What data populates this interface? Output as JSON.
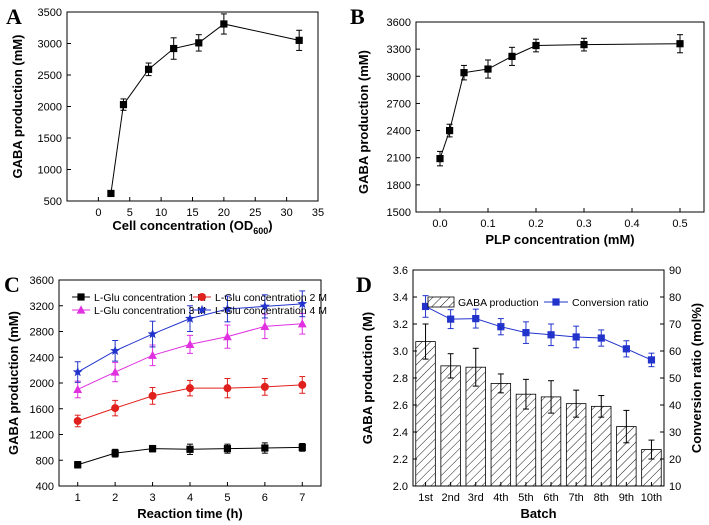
{
  "colors": {
    "black": "#000000",
    "red": "#e0201c",
    "magenta": "#e030e0",
    "blue": "#2233cc"
  },
  "chart_data": [
    {
      "panel": "A",
      "type": "line",
      "xlabel_main": "Cell concentration (OD",
      "xlabel_sub": "600",
      "xlabel_end": ")",
      "ylabel": "GABA production (mM)",
      "xlim": [
        -5,
        35
      ],
      "ylim": [
        500,
        3500
      ],
      "xticks": [
        0,
        5,
        10,
        15,
        20,
        25,
        30,
        35
      ],
      "yticks": [
        500,
        1000,
        1500,
        2000,
        2500,
        3000,
        3500
      ],
      "series": [
        {
          "name": "GABA",
          "x": [
            2,
            4,
            8,
            12,
            16,
            20,
            32
          ],
          "y": [
            620,
            2030,
            2590,
            2920,
            3010,
            3310,
            3050
          ],
          "err": [
            20,
            90,
            100,
            170,
            130,
            160,
            160
          ]
        }
      ]
    },
    {
      "panel": "B",
      "type": "line",
      "xlabel": "PLP concentration (mM)",
      "ylabel": "GABA production (mM)",
      "xlim": [
        -0.05,
        0.55
      ],
      "ylim": [
        1500,
        3600
      ],
      "xticks": [
        0.0,
        0.1,
        0.2,
        0.3,
        0.4,
        0.5
      ],
      "xticklabels": [
        "0.0",
        "0.1",
        "0.2",
        "0.3",
        "0.4",
        "0.5"
      ],
      "yticks": [
        1500,
        1800,
        2100,
        2400,
        2700,
        3000,
        3300,
        3600
      ],
      "series": [
        {
          "name": "GABA",
          "x": [
            0.0,
            0.02,
            0.05,
            0.1,
            0.15,
            0.2,
            0.3,
            0.5
          ],
          "y": [
            2090,
            2400,
            3040,
            3080,
            3220,
            3340,
            3350,
            3360
          ],
          "err": [
            80,
            70,
            80,
            100,
            100,
            70,
            70,
            100
          ]
        }
      ]
    },
    {
      "panel": "C",
      "type": "line",
      "xlabel": "Reaction time (h)",
      "ylabel": "GABA production (mM)",
      "xlim": [
        0.5,
        7.5
      ],
      "ylim": [
        400,
        3600
      ],
      "xticks": [
        1,
        2,
        3,
        4,
        5,
        6,
        7
      ],
      "yticks": [
        400,
        800,
        1200,
        1600,
        2000,
        2400,
        2800,
        3200,
        3600
      ],
      "series": [
        {
          "name": "L-Glu concentration 1 M",
          "color": "#000000",
          "marker": "square",
          "y": [
            730,
            910,
            980,
            970,
            980,
            990,
            1000
          ],
          "err": [
            50,
            60,
            50,
            80,
            70,
            80,
            60
          ]
        },
        {
          "name": "L-Glu concentration 2 M",
          "color": "#e0201c",
          "marker": "circle",
          "y": [
            1410,
            1610,
            1800,
            1920,
            1920,
            1940,
            1970
          ],
          "err": [
            90,
            120,
            130,
            120,
            150,
            130,
            130
          ]
        },
        {
          "name": "L-Glu concentration 3 M",
          "color": "#e030e0",
          "marker": "triangle",
          "y": [
            1900,
            2170,
            2430,
            2600,
            2720,
            2880,
            2920
          ],
          "err": [
            130,
            150,
            160,
            140,
            180,
            190,
            160
          ]
        },
        {
          "name": "L-Glu concentration 4 M",
          "color": "#2233cc",
          "marker": "star",
          "y": [
            2170,
            2500,
            2760,
            3000,
            3150,
            3190,
            3230
          ],
          "err": [
            160,
            160,
            200,
            200,
            200,
            180,
            200
          ]
        }
      ]
    },
    {
      "panel": "D",
      "type": "bar",
      "xlabel": "Batch",
      "ylabel": "GABA production (M)",
      "y2label": "Conversion ratio (mol%)",
      "categories": [
        "1st",
        "2nd",
        "3rd",
        "4th",
        "5th",
        "6th",
        "7th",
        "8th",
        "9th",
        "10th"
      ],
      "ylim": [
        2.0,
        3.6
      ],
      "yticks": [
        2.0,
        2.2,
        2.4,
        2.6,
        2.8,
        3.0,
        3.2,
        3.4,
        3.6
      ],
      "yticklabels": [
        "2.0",
        "2.2",
        "2.4",
        "2.6",
        "2.8",
        "3.0",
        "3.2",
        "3.4",
        "3.6"
      ],
      "y2lim": [
        10,
        90
      ],
      "y2ticks": [
        10,
        20,
        30,
        40,
        50,
        60,
        70,
        80,
        90
      ],
      "bars": {
        "name": "GABA production",
        "values": [
          3.07,
          2.89,
          2.88,
          2.76,
          2.68,
          2.66,
          2.61,
          2.59,
          2.44,
          2.27
        ],
        "err": [
          0.13,
          0.09,
          0.14,
          0.07,
          0.11,
          0.12,
          0.1,
          0.08,
          0.12,
          0.07
        ]
      },
      "line": {
        "name": "Conversion ratio",
        "values": [
          76.5,
          71.8,
          72.0,
          69.0,
          66.8,
          66.0,
          65.2,
          64.8,
          60.8,
          56.7
        ],
        "err": [
          4,
          3.5,
          3.5,
          3,
          4,
          4,
          4,
          3,
          3,
          2.5
        ]
      }
    }
  ]
}
